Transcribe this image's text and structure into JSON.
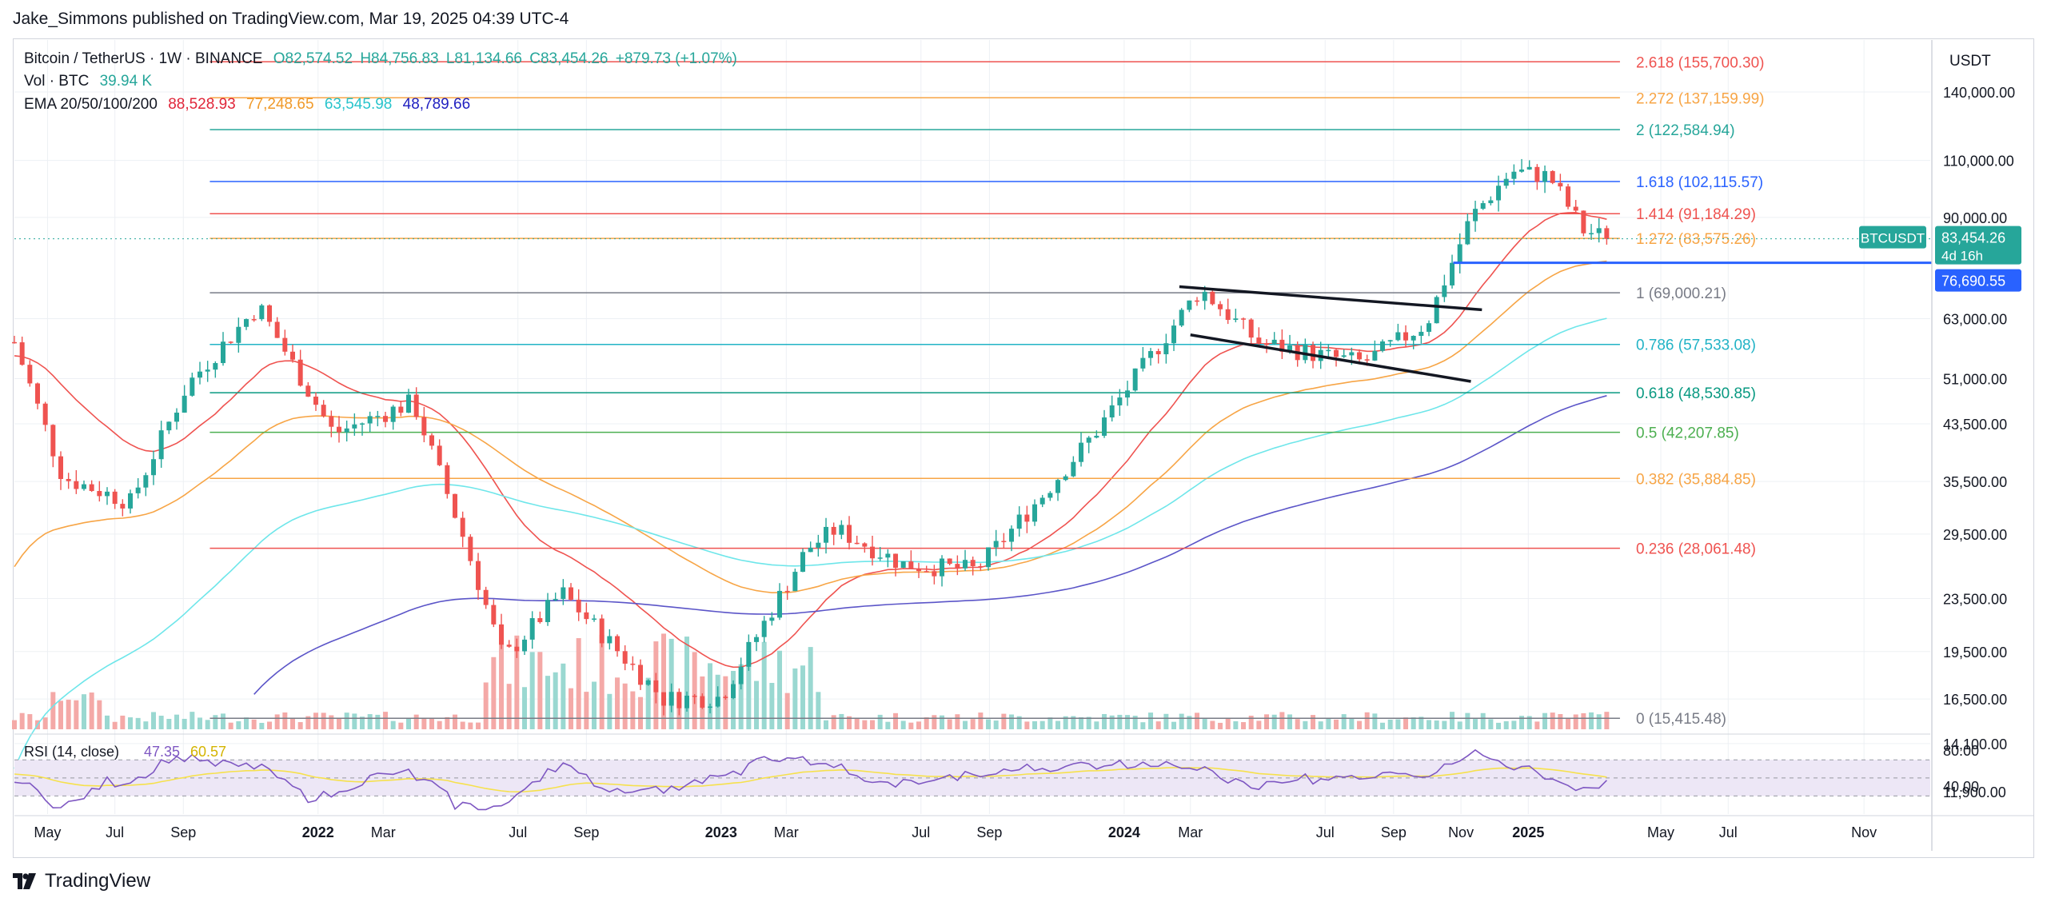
{
  "publisher": "Jake_Simmons published on TradingView.com, Mar 19, 2025 04:39 UTC-4",
  "legend": {
    "symbol": "Bitcoin / TetherUS · 1W · BINANCE",
    "ohlc": [
      "O82,574.52",
      "H84,756.83",
      "L81,134.66",
      "C83,454.26",
      "+879.73 (+1.07%)"
    ],
    "vol_label": "Vol · BTC",
    "vol_value": "39.94 K",
    "ema_label": "EMA 20/50/100/200",
    "ema_values": [
      "88,528.93",
      "77,248.65",
      "63,545.98",
      "48,789.66"
    ]
  },
  "colors": {
    "up": "#26a69a",
    "down": "#ef5350",
    "vol_up": "#9ad8d1",
    "vol_down": "#f4a9a7",
    "ema20": "#ef5350",
    "ema50": "#f7a546",
    "ema100": "#6ee6ea",
    "ema200": "#5b55c8",
    "rsi": "#7e57c2",
    "rsi_ma": "#f6e14c",
    "grid": "#edf0f4",
    "axis_text": "#131722",
    "price_tag": "#26a69a",
    "support_line": "#2962ff"
  },
  "chart_data": {
    "type": "candlestick",
    "title": "Bitcoin / TetherUS · 1W · BINANCE",
    "y_axis_unit": "USDT",
    "y_scale": "log",
    "y_ticks": [
      "140,000.00",
      "110,000.00",
      "90,000.00",
      "63,000.00",
      "51,000.00",
      "43,500.00",
      "35,500.00",
      "29,500.00",
      "23,500.00",
      "19,500.00",
      "16,500.00",
      "14,100.00",
      "11,900.00"
    ],
    "x_ticks": [
      "May",
      "Jul",
      "Sep",
      "2022",
      "Mar",
      "Jul",
      "Sep",
      "2023",
      "Mar",
      "Jul",
      "Sep",
      "2024",
      "Mar",
      "Jul",
      "Sep",
      "Nov",
      "2025",
      "May",
      "Jul",
      "Nov"
    ],
    "x_range": [
      "2021-04-01",
      "2025-12-31"
    ],
    "close_path_dates": [
      "2021-04-01",
      "2021-05-15",
      "2021-07-15",
      "2021-09-05",
      "2021-11-08",
      "2022-01-15",
      "2022-03-28",
      "2022-05-10",
      "2022-06-18",
      "2022-08-10",
      "2022-11-10",
      "2023-01-01",
      "2023-03-20",
      "2023-04-15",
      "2023-06-15",
      "2023-08-20",
      "2023-10-20",
      "2023-12-05",
      "2024-03-10",
      "2024-05-01",
      "2024-07-05",
      "2024-08-05",
      "2024-10-01",
      "2024-11-10",
      "2024-12-17",
      "2025-01-20",
      "2025-02-20",
      "2025-03-17"
    ],
    "close_path_values": [
      58000,
      36000,
      33000,
      50000,
      66000,
      42000,
      47000,
      30000,
      19000,
      24000,
      16500,
      16600,
      28000,
      30000,
      26500,
      26000,
      34000,
      42000,
      70000,
      58000,
      55000,
      54000,
      62000,
      90000,
      106000,
      104000,
      86000,
      83454
    ],
    "fibonacci_levels": [
      {
        "ratio": "2.618",
        "price": "155,700.30",
        "value": 155700.3
      },
      {
        "ratio": "2.272",
        "price": "137,159.99",
        "value": 137159.99
      },
      {
        "ratio": "2",
        "price": "122,584.94",
        "value": 122584.94
      },
      {
        "ratio": "1.618",
        "price": "102,115.57",
        "value": 102115.57
      },
      {
        "ratio": "1.414",
        "price": "91,184.29",
        "value": 91184.29
      },
      {
        "ratio": "1.272",
        "price": "83,575.26",
        "value": 83575.26
      },
      {
        "ratio": "1",
        "price": "69,000.21",
        "value": 69000.21
      },
      {
        "ratio": "0.786",
        "price": "57,533.08",
        "value": 57533.08
      },
      {
        "ratio": "0.618",
        "price": "48,530.85",
        "value": 48530.85
      },
      {
        "ratio": "0.5",
        "price": "42,207.85",
        "value": 42207.85
      },
      {
        "ratio": "0.382",
        "price": "35,884.85",
        "value": 35884.85
      },
      {
        "ratio": "0.236",
        "price": "28,061.48",
        "value": 28061.48
      },
      {
        "ratio": "0",
        "price": "15,415.48",
        "value": 15415.48
      }
    ],
    "fib_colors": [
      "#ef5350",
      "#f7a546",
      "#26a69a",
      "#2962ff",
      "#ef5350",
      "#f7a546",
      "#787b86",
      "#22b3c6",
      "#089981",
      "#4caf50",
      "#f7a546",
      "#ef5350",
      "#787b86"
    ],
    "fib_start_date": "2021-09-25",
    "fib_end_date": "2025-03-25",
    "last_price": {
      "symbol": "BTCUSDT",
      "value": "83,454.26",
      "countdown": "4d 16h",
      "price": 83454.26
    },
    "support": {
      "value": "76,690.55",
      "price": 76690.55,
      "start_date": "2024-10-25"
    },
    "trendlines": [
      {
        "from_date": "2024-02-20",
        "from": 70500,
        "to_date": "2024-11-20",
        "to": 65000
      },
      {
        "from_date": "2024-03-01",
        "from": 59500,
        "to_date": "2024-11-10",
        "to": 50500
      }
    ],
    "rsi": {
      "label": "RSI (14, close)",
      "value": "47.35",
      "ma_value": "60.57",
      "ticks": [
        "80.00",
        "40.00"
      ],
      "upper_band": 70,
      "lower_band": 30,
      "range": [
        10,
        95
      ]
    }
  },
  "footer": {
    "brand": "TradingView"
  }
}
